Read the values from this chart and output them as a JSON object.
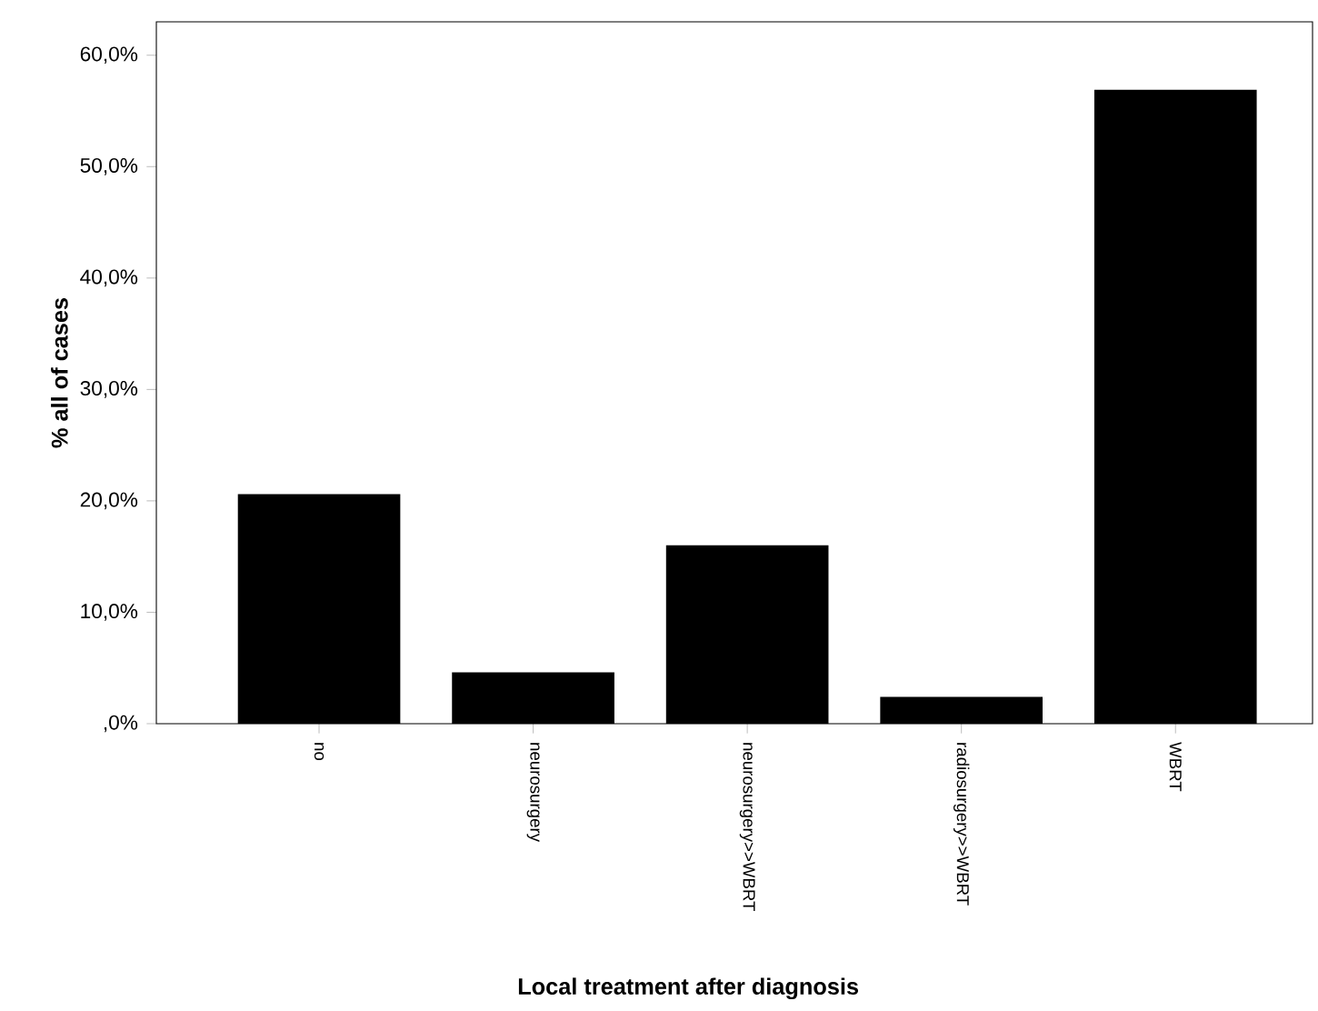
{
  "chart_data": {
    "type": "bar",
    "xlabel": "Local treatment after diagnosis",
    "ylabel": "% all of cases",
    "categories": [
      "no",
      "neurosurgery",
      "neurosurgery>>WBRT",
      "radiosurgery>>WBRT",
      "WBRT"
    ],
    "values": [
      20.5,
      4.5,
      15.9,
      2.3,
      56.8
    ],
    "color": "#000000",
    "ylim": [
      0,
      63
    ],
    "yticks": [
      {
        "value": 0,
        "label": ",0%"
      },
      {
        "value": 10,
        "label": "10,0%"
      },
      {
        "value": 20,
        "label": "20,0%"
      },
      {
        "value": 30,
        "label": "30,0%"
      },
      {
        "value": 40,
        "label": "40,0%"
      },
      {
        "value": 50,
        "label": "50,0%"
      },
      {
        "value": 60,
        "label": "60,0%"
      }
    ],
    "grid": false
  }
}
